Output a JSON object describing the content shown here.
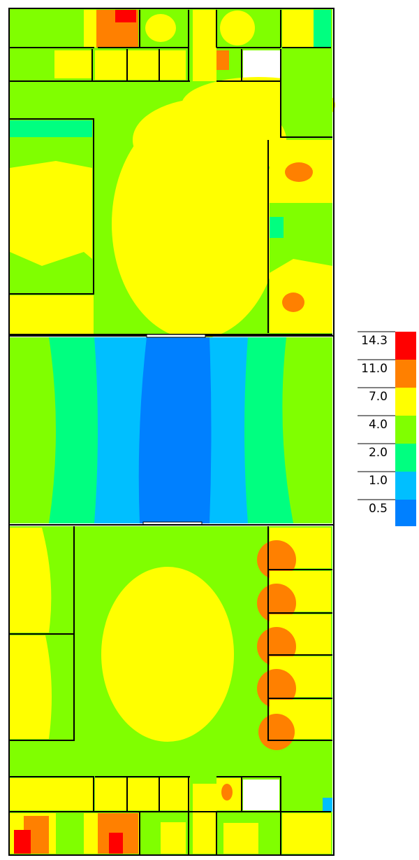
{
  "legend": {
    "ticks": [
      {
        "value": 14.3,
        "label": "14.3"
      },
      {
        "value": 11.0,
        "label": "11.0"
      },
      {
        "value": 7.0,
        "label": "7.0"
      },
      {
        "value": 4.0,
        "label": "4.0"
      },
      {
        "value": 2.0,
        "label": "2.0"
      },
      {
        "value": 1.0,
        "label": "1.0"
      },
      {
        "value": 0.5,
        "label": "0.5"
      }
    ],
    "colors": [
      "#ff0000",
      "#ff8000",
      "#ffff00",
      "#80ff00",
      "#00ff80",
      "#00bfff",
      "#0080ff"
    ]
  }
}
